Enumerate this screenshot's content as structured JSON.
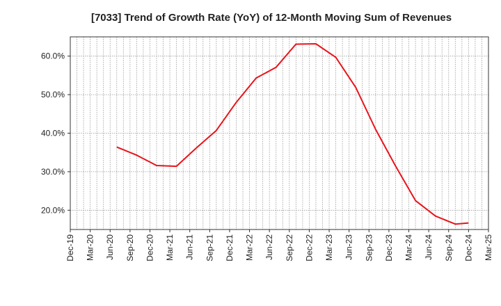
{
  "chart_data": {
    "type": "line",
    "title": "[7033]  Trend of Growth Rate (YoY) of 12-Month Moving Sum of Revenues",
    "xlabel": "",
    "ylabel": "",
    "x_ticks": [
      "Dec-19",
      "Mar-20",
      "Jun-20",
      "Sep-20",
      "Dec-20",
      "Mar-21",
      "Jun-21",
      "Sep-21",
      "Dec-21",
      "Mar-22",
      "Jun-22",
      "Sep-22",
      "Dec-22",
      "Mar-23",
      "Jun-23",
      "Sep-23",
      "Dec-23",
      "Mar-24",
      "Jun-24",
      "Sep-24",
      "Dec-24",
      "Mar-25"
    ],
    "y_ticks": [
      "20.0%",
      "30.0%",
      "40.0%",
      "50.0%",
      "60.0%"
    ],
    "y_tick_values": [
      20,
      30,
      40,
      50,
      60
    ],
    "ylim": [
      15,
      65
    ],
    "grid": true,
    "series": [
      {
        "color": "#e8141b",
        "points": [
          {
            "x": "Jul-20",
            "y": 36.4
          },
          {
            "x": "Oct-20",
            "y": 34.3
          },
          {
            "x": "Jan-21",
            "y": 31.6
          },
          {
            "x": "Apr-21",
            "y": 31.4
          },
          {
            "x": "Jul-21",
            "y": 36.2
          },
          {
            "x": "Oct-21",
            "y": 40.7
          },
          {
            "x": "Jan-22",
            "y": 48.0
          },
          {
            "x": "Apr-22",
            "y": 54.3
          },
          {
            "x": "Jul-22",
            "y": 57.1
          },
          {
            "x": "Oct-22",
            "y": 63.1
          },
          {
            "x": "Jan-23",
            "y": 63.2
          },
          {
            "x": "Apr-23",
            "y": 59.7
          },
          {
            "x": "Jul-23",
            "y": 51.9
          },
          {
            "x": "Oct-23",
            "y": 41.0
          },
          {
            "x": "Jan-24",
            "y": 31.5
          },
          {
            "x": "Apr-24",
            "y": 22.5
          },
          {
            "x": "Jul-24",
            "y": 18.5
          },
          {
            "x": "Oct-24",
            "y": 16.4
          },
          {
            "x": "Dec-24",
            "y": 16.7
          }
        ]
      }
    ]
  }
}
